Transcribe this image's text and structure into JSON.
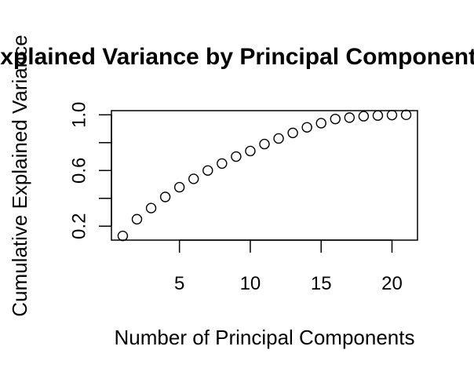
{
  "chart_data": {
    "type": "scatter",
    "title": "Explained Variance by Principal Components",
    "xlabel": "Number of Principal Components",
    "ylabel": "Cumulative Explained Variance",
    "xlim": [
      0.2,
      21.8
    ],
    "ylim": [
      0.1,
      1.03
    ],
    "x_ticks": [
      5,
      10,
      15,
      20
    ],
    "x_tick_labels": [
      "5",
      "10",
      "15",
      "20"
    ],
    "y_ticks": [
      0.2,
      0.4,
      0.6,
      0.8,
      1.0
    ],
    "y_tick_labels": [
      "0.2",
      "",
      "0.6",
      "",
      "1.0"
    ],
    "marker": "open-circle",
    "grid": false,
    "x": [
      1,
      2,
      3,
      4,
      5,
      6,
      7,
      8,
      9,
      10,
      11,
      12,
      13,
      14,
      15,
      16,
      17,
      18,
      19,
      20,
      21
    ],
    "y": [
      0.13,
      0.25,
      0.33,
      0.41,
      0.48,
      0.54,
      0.6,
      0.65,
      0.7,
      0.74,
      0.79,
      0.83,
      0.87,
      0.91,
      0.94,
      0.97,
      0.98,
      0.99,
      0.995,
      0.998,
      1.0
    ]
  }
}
